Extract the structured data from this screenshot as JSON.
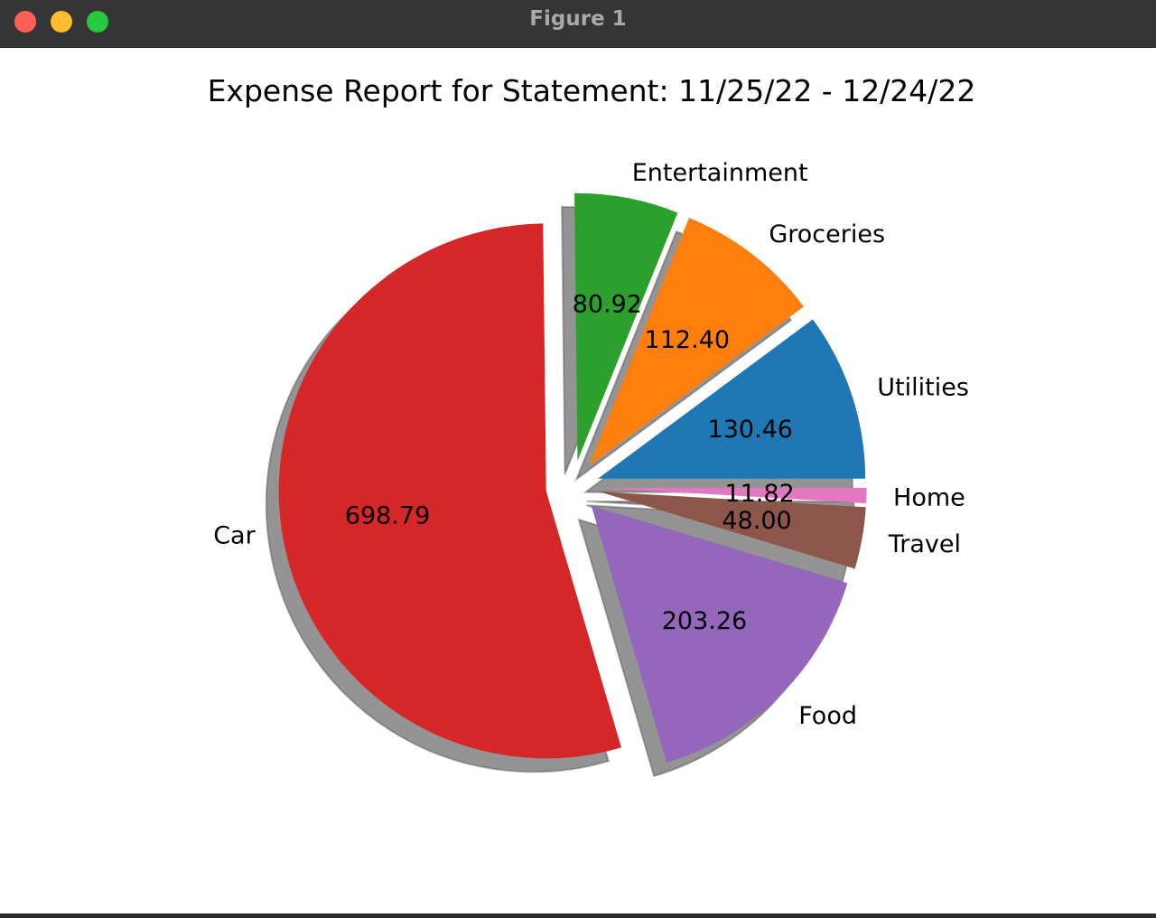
{
  "window": {
    "title": "Figure 1",
    "controls": {
      "close_color": "#ff5f57",
      "minimize_color": "#febc2e",
      "zoom_color": "#28c840"
    }
  },
  "chart_data": {
    "type": "pie",
    "title": "Expense Report for Statement: 11/25/22 - 12/24/22",
    "shadow": true,
    "exploded": true,
    "start_angle_deg": 0,
    "direction": "counterclockwise",
    "slices": [
      {
        "label": "Utilities",
        "value": 130.46,
        "value_label": "130.46",
        "color": "#1f77b4"
      },
      {
        "label": "Groceries",
        "value": 112.4,
        "value_label": "112.40",
        "color": "#ff7f0e"
      },
      {
        "label": "Entertainment",
        "value": 80.92,
        "value_label": "80.92",
        "color": "#2ca02c"
      },
      {
        "label": "Car",
        "value": 698.79,
        "value_label": "698.79",
        "color": "#d62728"
      },
      {
        "label": "Food",
        "value": 203.26,
        "value_label": "203.26",
        "color": "#9467bd"
      },
      {
        "label": "Travel",
        "value": 48.0,
        "value_label": "48.00",
        "color": "#8c564b"
      },
      {
        "label": "Home",
        "value": 11.82,
        "value_label": "11.82",
        "color": "#e377c2"
      }
    ]
  }
}
